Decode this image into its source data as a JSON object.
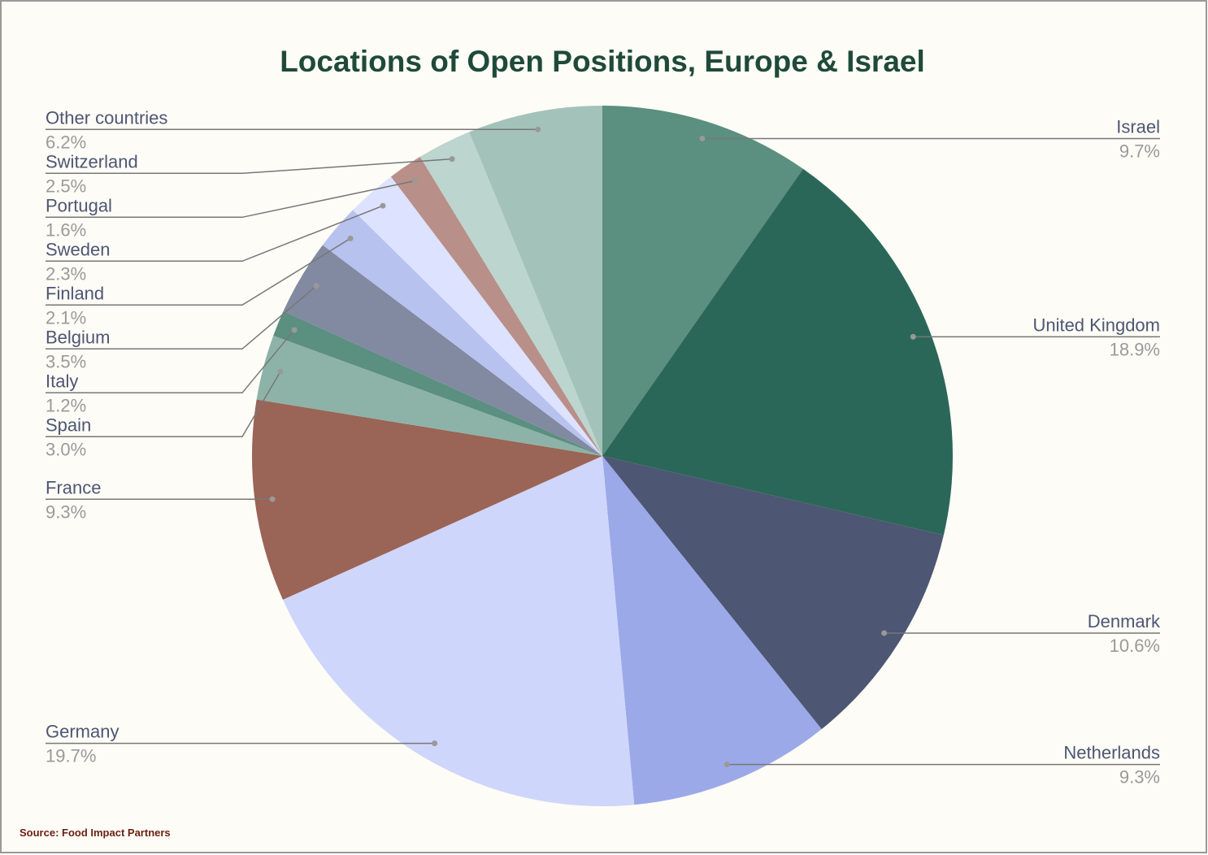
{
  "chart_data": {
    "type": "pie",
    "title": "Locations of Open Positions, Europe & Israel",
    "categories": [
      "Israel",
      "United Kingdom",
      "Denmark",
      "Netherlands",
      "Germany",
      "France",
      "Spain",
      "Italy",
      "Belgium",
      "Finland",
      "Sweden",
      "Portugal",
      "Switzerland",
      "Other countries"
    ],
    "values": [
      9.7,
      18.9,
      10.6,
      9.3,
      19.7,
      9.3,
      3.0,
      1.2,
      3.5,
      2.1,
      2.3,
      1.6,
      2.5,
      6.2
    ],
    "value_labels": [
      "9.7%",
      "18.9%",
      "10.6%",
      "9.3%",
      "19.7%",
      "9.3%",
      "3.0%",
      "1.2%",
      "3.5%",
      "2.1%",
      "2.3%",
      "1.6%",
      "2.5%",
      "6.2%"
    ],
    "colors": [
      "#5b8f80",
      "#2b6758",
      "#4d5673",
      "#9ca9e8",
      "#cfd6fb",
      "#9a6456",
      "#8db3a8",
      "#5b8f80",
      "#818aa0",
      "#b8c2ef",
      "#dde2fe",
      "#b89089",
      "#bcd5ce",
      "#a3c2ba"
    ],
    "source": "Source: Food Impact Partners"
  }
}
